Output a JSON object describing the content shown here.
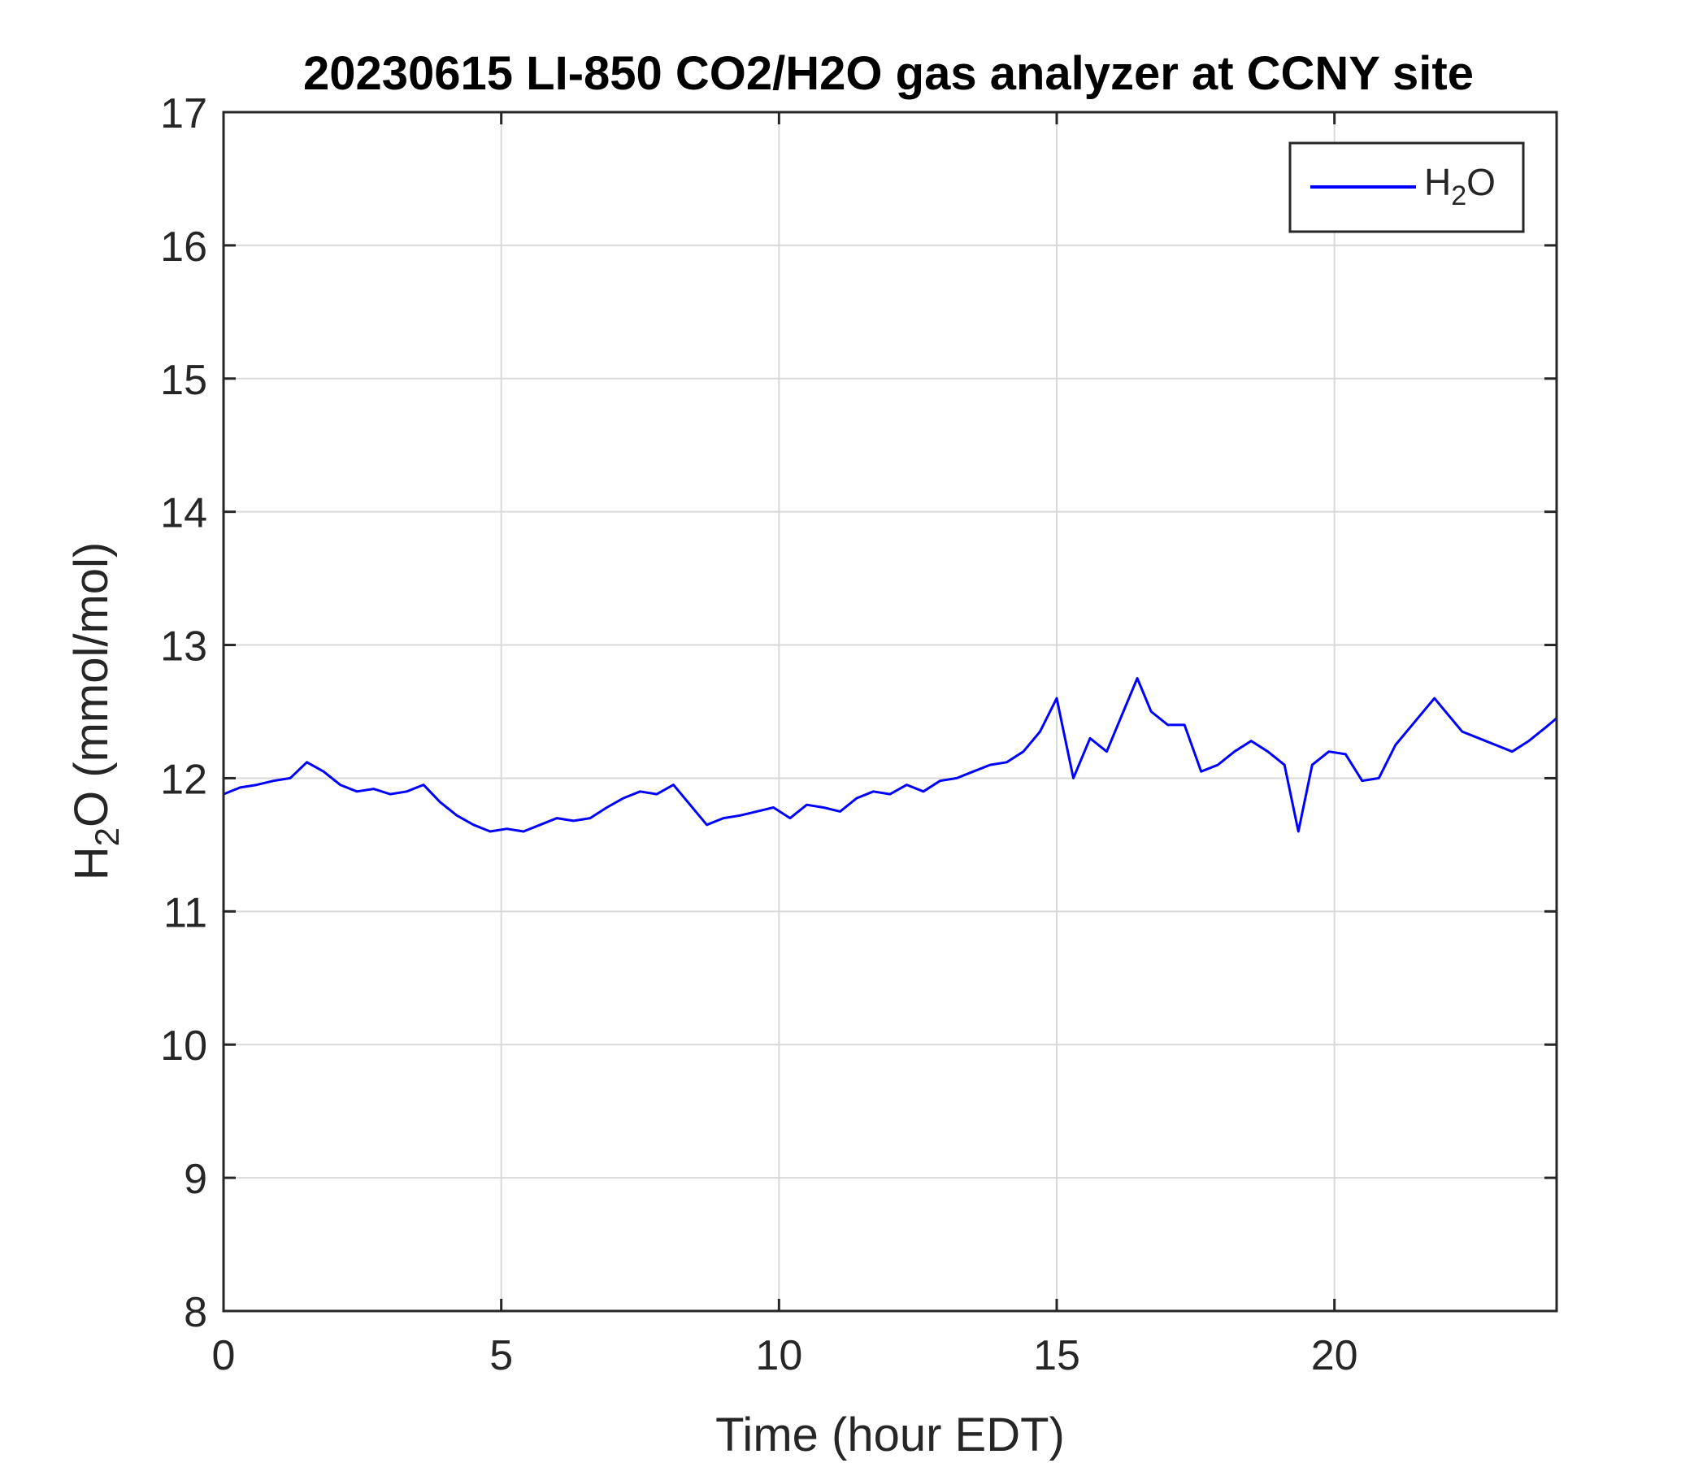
{
  "chart_data": {
    "type": "line",
    "title": "20230615 LI-850 CO2/H2O gas analyzer at CCNY site",
    "xlabel": "Time (hour EDT)",
    "ylabel": {
      "prefix": "H",
      "sub": "2",
      "suffix": "O (mmol/mol)"
    },
    "xlim": [
      0,
      24
    ],
    "ylim": [
      8,
      17
    ],
    "xticks": [
      0,
      5,
      10,
      15,
      20
    ],
    "yticks": [
      8,
      9,
      10,
      11,
      12,
      13,
      14,
      15,
      16,
      17
    ],
    "grid": true,
    "legend": {
      "position": "top-right",
      "entries": [
        {
          "prefix": "H",
          "sub": "2",
          "suffix": "O"
        }
      ]
    },
    "series": [
      {
        "color": "#0000ff",
        "x": [
          0,
          0.3,
          0.6,
          0.9,
          1.2,
          1.5,
          1.8,
          2.1,
          2.4,
          2.7,
          3.0,
          3.3,
          3.6,
          3.9,
          4.2,
          4.5,
          4.8,
          5.1,
          5.4,
          5.7,
          6.0,
          6.3,
          6.6,
          6.9,
          7.2,
          7.5,
          7.8,
          8.1,
          8.4,
          8.7,
          9.0,
          9.3,
          9.6,
          9.9,
          10.2,
          10.5,
          10.8,
          11.1,
          11.4,
          11.7,
          12.0,
          12.3,
          12.6,
          12.9,
          13.2,
          13.5,
          13.8,
          14.1,
          14.4,
          14.7,
          15.0,
          15.1,
          15.3,
          15.6,
          15.9,
          16.2,
          16.45,
          16.7,
          17.0,
          17.3,
          17.6,
          17.9,
          18.2,
          18.5,
          18.8,
          19.1,
          19.35,
          19.6,
          19.9,
          20.2,
          20.5,
          20.8,
          21.1,
          21.4,
          21.7,
          21.8,
          22.0,
          22.3,
          22.6,
          22.9,
          23.2,
          23.5,
          23.8,
          24.0
        ],
        "y": [
          11.88,
          11.93,
          11.95,
          11.98,
          12.0,
          12.12,
          12.05,
          11.95,
          11.9,
          11.92,
          11.88,
          11.9,
          11.95,
          11.82,
          11.72,
          11.65,
          11.6,
          11.62,
          11.6,
          11.65,
          11.7,
          11.68,
          11.7,
          11.78,
          11.85,
          11.9,
          11.88,
          11.95,
          11.8,
          11.65,
          11.7,
          11.72,
          11.75,
          11.78,
          11.7,
          11.8,
          11.78,
          11.75,
          11.85,
          11.9,
          11.88,
          11.95,
          11.9,
          11.98,
          12.0,
          12.05,
          12.1,
          12.12,
          12.2,
          12.35,
          12.6,
          12.4,
          12.0,
          12.3,
          12.2,
          12.5,
          12.75,
          12.5,
          12.4,
          12.4,
          12.05,
          12.1,
          12.2,
          12.28,
          12.2,
          12.1,
          11.6,
          12.1,
          12.2,
          12.18,
          11.98,
          12.0,
          12.25,
          12.4,
          12.55,
          12.6,
          12.5,
          12.35,
          12.3,
          12.25,
          12.2,
          12.28,
          12.38,
          12.45
        ]
      }
    ]
  }
}
